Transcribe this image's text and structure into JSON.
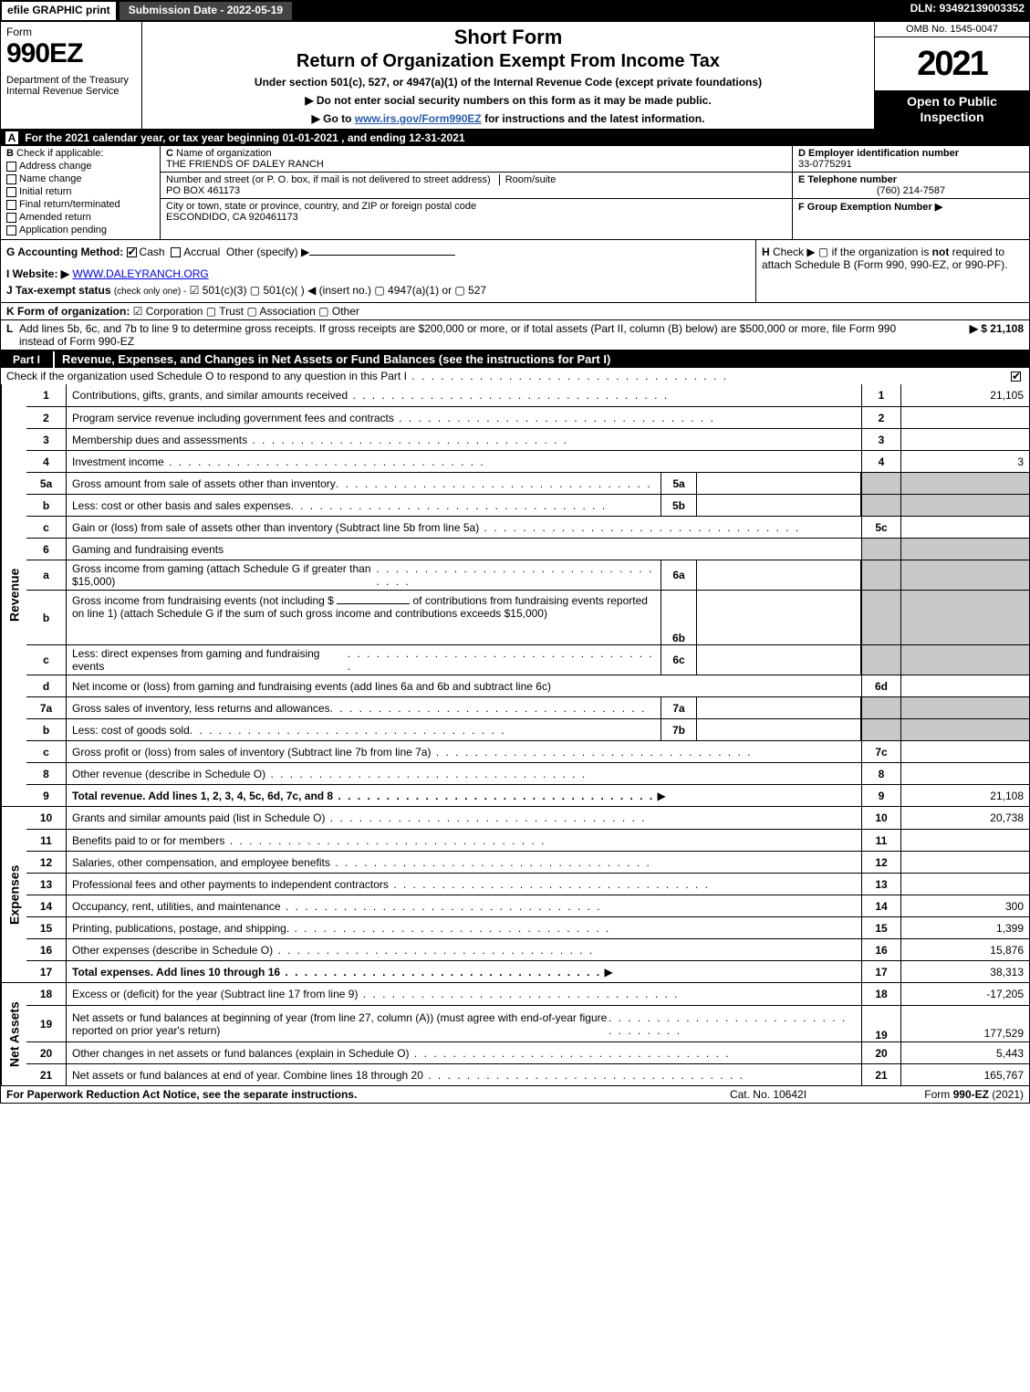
{
  "topbar": {
    "efile": "efile GRAPHIC print",
    "submission": "Submission Date - 2022-05-19",
    "dln": "DLN: 93492139003352"
  },
  "header": {
    "form_word": "Form",
    "form_num": "990EZ",
    "dept": "Department of the Treasury\nInternal Revenue Service",
    "short": "Short Form",
    "title2": "Return of Organization Exempt From Income Tax",
    "subtitle": "Under section 501(c), 527, or 4947(a)(1) of the Internal Revenue Code (except private foundations)",
    "note1": "▶ Do not enter social security numbers on this form as it may be made public.",
    "note2_pre": "▶ Go to ",
    "note2_link": "www.irs.gov/Form990EZ",
    "note2_post": " for instructions and the latest information.",
    "omb": "OMB No. 1545-0047",
    "year": "2021",
    "inspect": "Open to Public Inspection"
  },
  "rowA": {
    "label": "A",
    "text": "For the 2021 calendar year, or tax year beginning 01-01-2021 , and ending 12-31-2021"
  },
  "B": {
    "label": "B",
    "heading": "Check if applicable:",
    "items": [
      "Address change",
      "Name change",
      "Initial return",
      "Final return/terminated",
      "Amended return",
      "Application pending"
    ]
  },
  "C": {
    "label": "C",
    "name_label": "Name of organization",
    "name": "THE FRIENDS OF DALEY RANCH",
    "street_label": "Number and street (or P. O. box, if mail is not delivered to street address)",
    "room_label": "Room/suite",
    "street": "PO BOX 461173",
    "city_label": "City or town, state or province, country, and ZIP or foreign postal code",
    "city": "ESCONDIDO, CA  920461173"
  },
  "D": {
    "label": "D Employer identification number",
    "value": "33-0775291"
  },
  "E": {
    "label": "E Telephone number",
    "value": "(760) 214-7587"
  },
  "F": {
    "label": "F Group Exemption Number  ▶",
    "value": ""
  },
  "G": {
    "label": "G Accounting Method:",
    "cash": "Cash",
    "accrual": "Accrual",
    "other": "Other (specify) ▶"
  },
  "H": {
    "label": "H",
    "text1": "Check ▶  ▢  if the organization is ",
    "not": "not",
    "text2": " required to attach Schedule B (Form 990, 990-EZ, or 990-PF)."
  },
  "I": {
    "label": "I Website: ▶",
    "value": "WWW.DALEYRANCH.ORG"
  },
  "J": {
    "label": "J Tax-exempt status",
    "sub": "(check only one) -",
    "opts": "☑ 501(c)(3)  ▢ 501(c)(  ) ◀ (insert no.)  ▢ 4947(a)(1) or  ▢ 527"
  },
  "K": {
    "label": "K Form of organization:",
    "opts": "☑ Corporation   ▢ Trust   ▢ Association   ▢ Other"
  },
  "L": {
    "label": "L",
    "text": "Add lines 5b, 6c, and 7b to line 9 to determine gross receipts. If gross receipts are $200,000 or more, or if total assets (Part II, column (B) below) are $500,000 or more, file Form 990 instead of Form 990-EZ",
    "amount": "▶ $ 21,108"
  },
  "part1": {
    "tab": "Part I",
    "title": "Revenue, Expenses, and Changes in Net Assets or Fund Balances (see the instructions for Part I)",
    "subtitle": "Check if the organization used Schedule O to respond to any question in this Part I",
    "checked": true
  },
  "sections": {
    "revenue": "Revenue",
    "expenses": "Expenses",
    "netassets": "Net Assets"
  },
  "lines": {
    "l1": {
      "n": "1",
      "d": "Contributions, gifts, grants, and similar amounts received",
      "r": "1",
      "v": "21,105"
    },
    "l2": {
      "n": "2",
      "d": "Program service revenue including government fees and contracts",
      "r": "2",
      "v": ""
    },
    "l3": {
      "n": "3",
      "d": "Membership dues and assessments",
      "r": "3",
      "v": ""
    },
    "l4": {
      "n": "4",
      "d": "Investment income",
      "r": "4",
      "v": "3"
    },
    "l5a": {
      "n": "5a",
      "d": "Gross amount from sale of assets other than inventory",
      "m": "5a",
      "mv": ""
    },
    "l5b": {
      "n": "b",
      "d": "Less: cost or other basis and sales expenses",
      "m": "5b",
      "mv": ""
    },
    "l5c": {
      "n": "c",
      "d": "Gain or (loss) from sale of assets other than inventory (Subtract line 5b from line 5a)",
      "r": "5c",
      "v": ""
    },
    "l6": {
      "n": "6",
      "d": "Gaming and fundraising events"
    },
    "l6a": {
      "n": "a",
      "d": "Gross income from gaming (attach Schedule G if greater than $15,000)",
      "m": "6a",
      "mv": ""
    },
    "l6b": {
      "n": "b",
      "d1": "Gross income from fundraising events (not including $",
      "d2": "of contributions from fundraising events reported on line 1) (attach Schedule G if the sum of such gross income and contributions exceeds $15,000)",
      "m": "6b",
      "mv": ""
    },
    "l6c": {
      "n": "c",
      "d": "Less: direct expenses from gaming and fundraising events",
      "m": "6c",
      "mv": ""
    },
    "l6d": {
      "n": "d",
      "d": "Net income or (loss) from gaming and fundraising events (add lines 6a and 6b and subtract line 6c)",
      "r": "6d",
      "v": ""
    },
    "l7a": {
      "n": "7a",
      "d": "Gross sales of inventory, less returns and allowances",
      "m": "7a",
      "mv": ""
    },
    "l7b": {
      "n": "b",
      "d": "Less: cost of goods sold",
      "m": "7b",
      "mv": ""
    },
    "l7c": {
      "n": "c",
      "d": "Gross profit or (loss) from sales of inventory (Subtract line 7b from line 7a)",
      "r": "7c",
      "v": ""
    },
    "l8": {
      "n": "8",
      "d": "Other revenue (describe in Schedule O)",
      "r": "8",
      "v": ""
    },
    "l9": {
      "n": "9",
      "d": "Total revenue. Add lines 1, 2, 3, 4, 5c, 6d, 7c, and 8",
      "r": "9",
      "v": "21,108",
      "bold": true,
      "arrow": true
    },
    "l10": {
      "n": "10",
      "d": "Grants and similar amounts paid (list in Schedule O)",
      "r": "10",
      "v": "20,738"
    },
    "l11": {
      "n": "11",
      "d": "Benefits paid to or for members",
      "r": "11",
      "v": ""
    },
    "l12": {
      "n": "12",
      "d": "Salaries, other compensation, and employee benefits",
      "r": "12",
      "v": ""
    },
    "l13": {
      "n": "13",
      "d": "Professional fees and other payments to independent contractors",
      "r": "13",
      "v": ""
    },
    "l14": {
      "n": "14",
      "d": "Occupancy, rent, utilities, and maintenance",
      "r": "14",
      "v": "300"
    },
    "l15": {
      "n": "15",
      "d": "Printing, publications, postage, and shipping.",
      "r": "15",
      "v": "1,399"
    },
    "l16": {
      "n": "16",
      "d": "Other expenses (describe in Schedule O)",
      "r": "16",
      "v": "15,876"
    },
    "l17": {
      "n": "17",
      "d": "Total expenses. Add lines 10 through 16",
      "r": "17",
      "v": "38,313",
      "bold": true,
      "arrow": true
    },
    "l18": {
      "n": "18",
      "d": "Excess or (deficit) for the year (Subtract line 17 from line 9)",
      "r": "18",
      "v": "-17,205"
    },
    "l19": {
      "n": "19",
      "d": "Net assets or fund balances at beginning of year (from line 27, column (A)) (must agree with end-of-year figure reported on prior year's return)",
      "r": "19",
      "v": "177,529"
    },
    "l20": {
      "n": "20",
      "d": "Other changes in net assets or fund balances (explain in Schedule O)",
      "r": "20",
      "v": "5,443"
    },
    "l21": {
      "n": "21",
      "d": "Net assets or fund balances at end of year. Combine lines 18 through 20",
      "r": "21",
      "v": "165,767"
    }
  },
  "footer": {
    "left": "For Paperwork Reduction Act Notice, see the separate instructions.",
    "mid": "Cat. No. 10642I",
    "right_pre": "Form ",
    "right_bold": "990-EZ",
    "right_post": " (2021)"
  },
  "colors": {
    "black": "#000000",
    "shade": "#c8c8c8",
    "link": "#2a5db0"
  }
}
